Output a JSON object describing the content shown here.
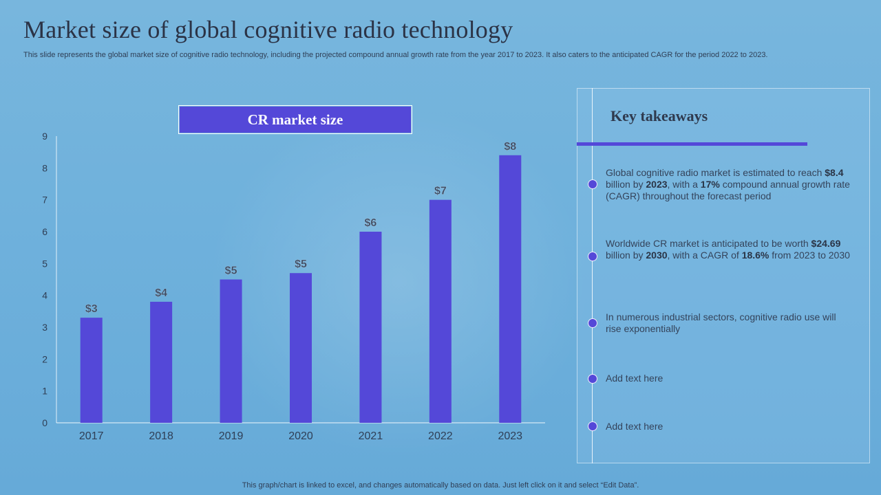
{
  "page": {
    "title": "Market size of  global cognitive radio technology",
    "subtitle": "This slide represents the global market size of cognitive radio technology, including the projected compound annual growth rate from the year 2017 to 2023. It also caters to the anticipated CAGR for the period 2022 to 2023.",
    "footer": "This graph/chart is linked to excel, and changes automatically based on data. Just left click on it and select “Edit Data”."
  },
  "colors": {
    "accent": "#5448d8",
    "axis_text": "#2f3e55",
    "label_text": "#3a4860"
  },
  "chart_data": {
    "type": "bar",
    "title": "CR market size",
    "categories": [
      "2017",
      "2018",
      "2019",
      "2020",
      "2021",
      "2022",
      "2023"
    ],
    "values": [
      3.3,
      3.8,
      4.5,
      4.7,
      6.0,
      7.0,
      8.4
    ],
    "data_labels": [
      "$3",
      "$4",
      "$5",
      "$5",
      "$6",
      "$7",
      "$8"
    ],
    "ylim": [
      0,
      9
    ],
    "yticks": [
      "0",
      "1",
      "2",
      "3",
      "4",
      "5",
      "6",
      "7",
      "8",
      "9"
    ],
    "xlabel": "",
    "ylabel": "",
    "grid": false
  },
  "takeaways": {
    "title": "Key takeaways",
    "items": [
      {
        "parts": [
          {
            "text": "Global cognitive radio market is estimated to reach ",
            "bold": false
          },
          {
            "text": "$8.4",
            "bold": true
          },
          {
            "text": " billion by ",
            "bold": false
          },
          {
            "text": "2023",
            "bold": true
          },
          {
            "text": ", with a ",
            "bold": false
          },
          {
            "text": "17%",
            "bold": true
          },
          {
            "text": " compound annual growth rate (CAGR) throughout the forecast period",
            "bold": false
          }
        ]
      },
      {
        "parts": [
          {
            "text": "Worldwide CR market is anticipated to be worth ",
            "bold": false
          },
          {
            "text": "$24.69",
            "bold": true
          },
          {
            "text": " billion  by ",
            "bold": false
          },
          {
            "text": "2030",
            "bold": true
          },
          {
            "text": ", with a CAGR of ",
            "bold": false
          },
          {
            "text": "18.6%",
            "bold": true
          },
          {
            "text": " from 2023 to 2030",
            "bold": false
          }
        ]
      },
      {
        "parts": [
          {
            "text": "In numerous industrial sectors, cognitive radio use will rise exponentially",
            "bold": false
          }
        ]
      },
      {
        "parts": [
          {
            "text": "Add text here",
            "bold": false
          }
        ]
      },
      {
        "parts": [
          {
            "text": "Add text here",
            "bold": false
          }
        ]
      }
    ]
  }
}
